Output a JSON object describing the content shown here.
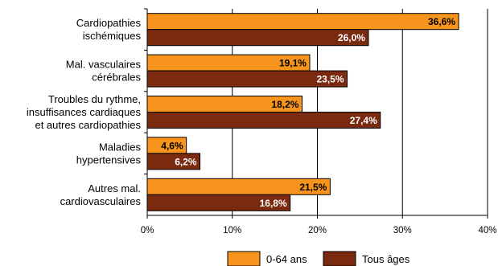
{
  "chart_data": {
    "type": "bar",
    "orientation": "horizontal",
    "categories": [
      [
        "Cardiopathies",
        "ischémiques"
      ],
      [
        "Mal. vasculaires",
        "cérébrales"
      ],
      [
        "Troubles du rythme,",
        "insuffisances cardiaques",
        "et autres cardiopathies"
      ],
      [
        "Maladies",
        "hypertensives"
      ],
      [
        "Autres mal.",
        "cardiovasculaires"
      ]
    ],
    "series": [
      {
        "name": "0-64 ans",
        "color": "#F7941D",
        "values": [
          36.6,
          19.1,
          18.2,
          4.6,
          21.5
        ],
        "data_labels": [
          "36,6%",
          "19,1%",
          "18,2%",
          "4,6%",
          "21,5%"
        ],
        "label_color": "#000000"
      },
      {
        "name": "Tous âges",
        "color": "#7A2A0E",
        "values": [
          26.0,
          23.5,
          27.4,
          6.2,
          16.8
        ],
        "data_labels": [
          "26,0%",
          "23,5%",
          "27,4%",
          "6,2%",
          "16,8%"
        ],
        "label_color": "#FFFFFF"
      }
    ],
    "xlim": [
      0,
      40
    ],
    "x_ticks": [
      0,
      10,
      20,
      30,
      40
    ],
    "x_tick_labels": [
      "0%",
      "10%",
      "20%",
      "30%",
      "40%"
    ],
    "grid": "vertical",
    "legend_position": "bottom-right",
    "title": "",
    "xlabel": "",
    "ylabel": ""
  }
}
